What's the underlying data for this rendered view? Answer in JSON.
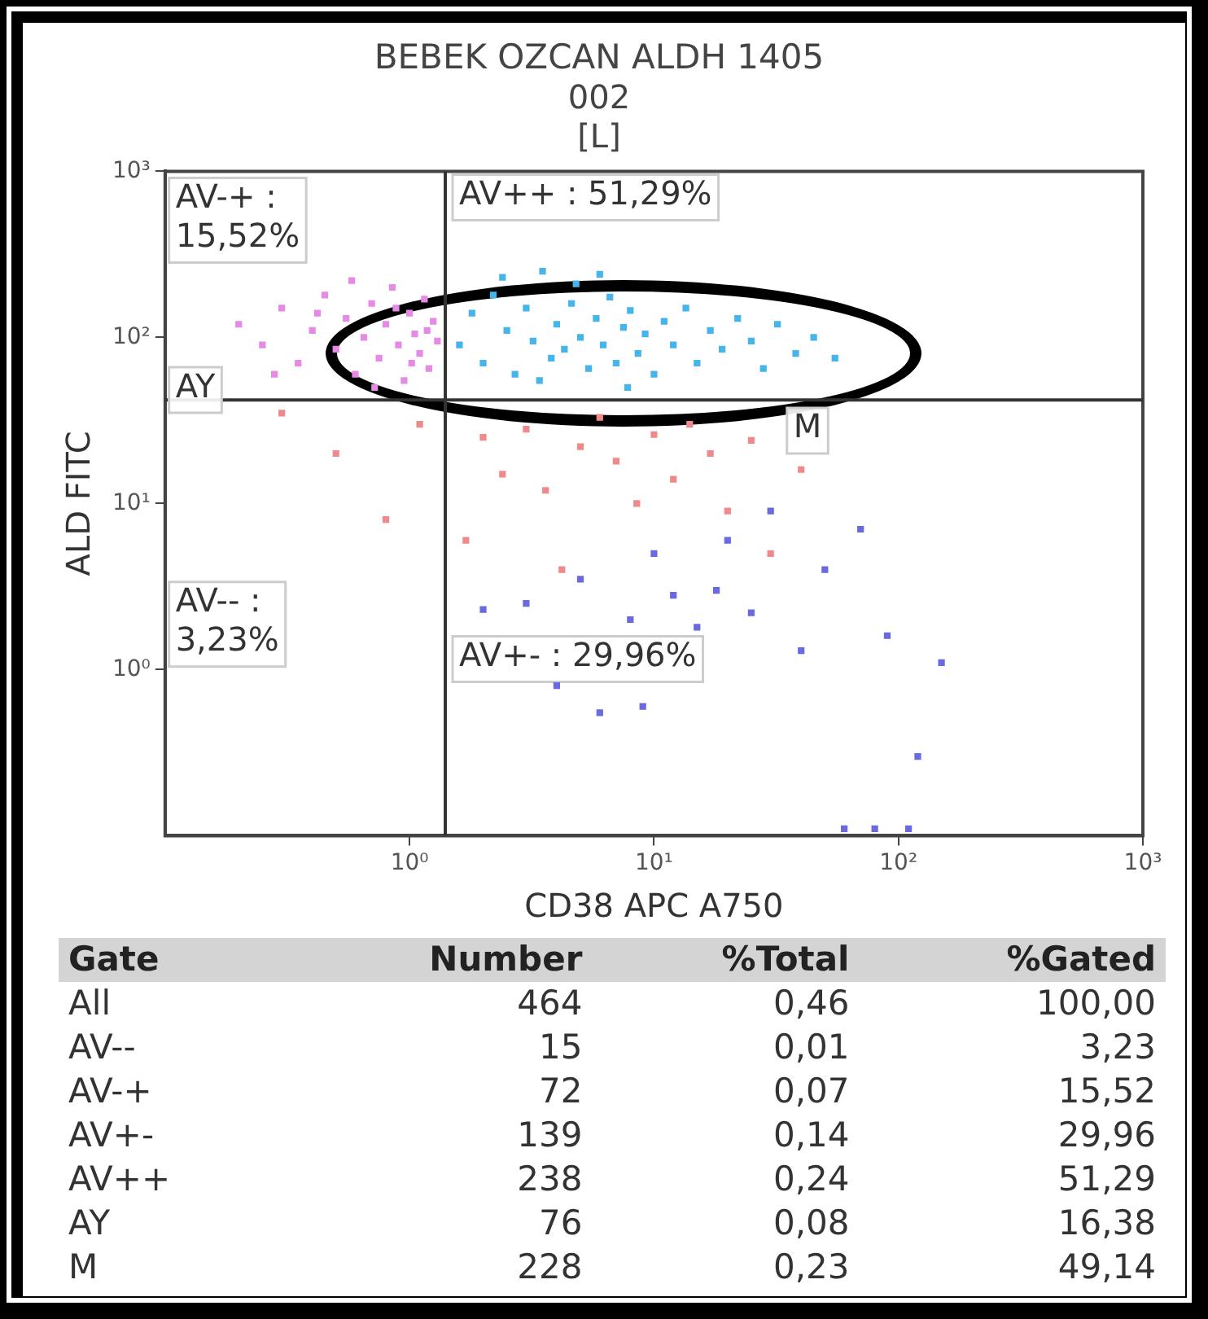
{
  "chart_data": {
    "type": "scatter",
    "title": "BEBEK OZCAN ALDH 1405",
    "subtitle": "002\n[L]",
    "xlabel": "CD38 APC A750",
    "ylabel": "ALD FITC",
    "log": "xy",
    "xlim": [
      0.1,
      1000
    ],
    "ylim": [
      0.1,
      1000
    ],
    "xticks": [
      {
        "value": 1,
        "label": "10⁰"
      },
      {
        "value": 10,
        "label": "10¹"
      },
      {
        "value": 100,
        "label": "10²"
      },
      {
        "value": 1000,
        "label": "10³"
      }
    ],
    "yticks": [
      {
        "value": 1,
        "label": "10⁰"
      },
      {
        "value": 10,
        "label": "10¹"
      },
      {
        "value": 100,
        "label": "10²"
      },
      {
        "value": 1000,
        "label": "10³"
      }
    ],
    "grid": false,
    "legend": false,
    "marker": "square",
    "ref_lines": [
      {
        "axis": "x",
        "value": 1.4,
        "color": "#333333"
      },
      {
        "axis": "y",
        "value": 42,
        "color": "#333333"
      }
    ],
    "series": [
      {
        "color": "#e58ae5",
        "x": [
          0.2,
          0.25,
          0.3,
          0.35,
          0.4,
          0.45,
          0.5,
          0.55,
          0.6,
          0.65,
          0.7,
          0.75,
          0.8,
          0.85,
          0.9,
          0.95,
          1.0,
          1.05,
          1.1,
          1.15,
          1.2,
          1.25,
          1.3,
          0.28,
          0.42,
          0.58,
          0.72,
          0.88,
          1.02,
          1.18
        ],
        "values": [
          120,
          90,
          150,
          70,
          110,
          180,
          85,
          130,
          60,
          100,
          160,
          75,
          120,
          200,
          90,
          55,
          140,
          105,
          80,
          170,
          65,
          125,
          95,
          60,
          140,
          220,
          50,
          150,
          70,
          110
        ]
      },
      {
        "color": "#45b5ea",
        "x": [
          1.6,
          1.8,
          2,
          2.2,
          2.5,
          2.7,
          3,
          3.2,
          3.5,
          3.8,
          4,
          4.3,
          4.6,
          5,
          5.4,
          5.8,
          6.2,
          6.6,
          7,
          7.5,
          8,
          8.6,
          9.2,
          10,
          11,
          12,
          13.5,
          15,
          17,
          19,
          22,
          25,
          28,
          32,
          38,
          45,
          55,
          2.4,
          3.4,
          4.8,
          6,
          7.8
        ],
        "values": [
          90,
          140,
          70,
          180,
          110,
          60,
          150,
          95,
          250,
          75,
          120,
          85,
          160,
          100,
          65,
          130,
          90,
          175,
          70,
          115,
          145,
          80,
          105,
          60,
          125,
          90,
          150,
          70,
          110,
          85,
          130,
          95,
          65,
          120,
          80,
          100,
          75,
          230,
          55,
          210,
          240,
          50
        ]
      },
      {
        "color": "#f08a8a",
        "x": [
          0.3,
          0.5,
          0.8,
          1.1,
          1.7,
          2,
          2.4,
          3,
          3.6,
          4.2,
          5,
          6,
          7,
          8.5,
          10,
          12,
          14,
          17,
          20,
          25,
          30,
          40
        ],
        "values": [
          35,
          20,
          8,
          30,
          6,
          25,
          15,
          28,
          12,
          4,
          22,
          33,
          18,
          10,
          26,
          14,
          30,
          20,
          9,
          24,
          5,
          16
        ]
      },
      {
        "color": "#6a6ae0",
        "x": [
          2,
          3,
          4,
          5,
          6,
          8,
          9,
          10,
          12,
          15,
          18,
          20,
          25,
          30,
          40,
          50,
          70,
          90,
          120,
          150,
          60,
          80,
          110
        ],
        "values": [
          2.3,
          2.5,
          0.8,
          3.5,
          0.55,
          2,
          0.6,
          5,
          2.8,
          1.8,
          3,
          6,
          2.2,
          9,
          1.3,
          4,
          7,
          1.6,
          0.3,
          1.1,
          0.11,
          0.11,
          0.11
        ]
      }
    ],
    "annotations": [
      "AV-+ :\n15,52%",
      "AV++ : 51,29%",
      "AY",
      "M",
      "AV-- :\n3,23%",
      "AV+- : 29,96%",
      "Gate Number %Total %Gated",
      "All 464 0,46 100,00",
      "AV-- 15 0,01 3,23",
      "AV-+ 72 0,07 15,52",
      "AV+- 139 0,14 29,96",
      "AV++ 238 0,24 51,29",
      "AY 76 0,08 16,38",
      "M 228 0,23 49,14"
    ]
  }
}
